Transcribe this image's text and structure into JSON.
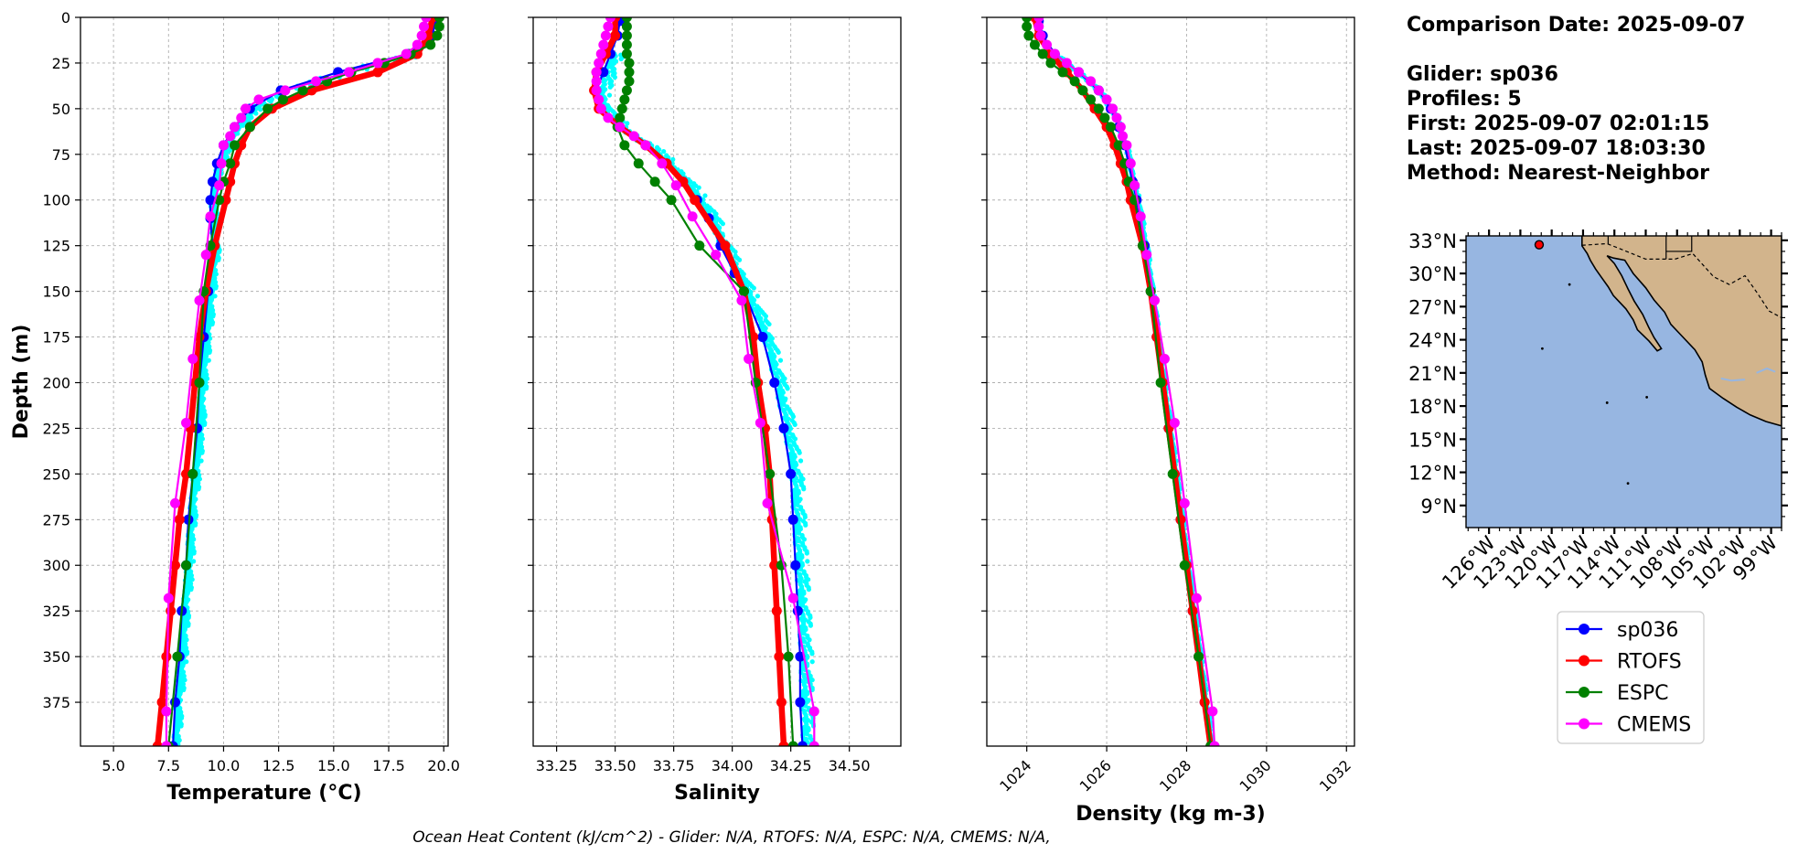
{
  "info": {
    "comparison_date": "Comparison Date: 2025-09-07",
    "glider": "Glider: sp036",
    "profiles": "Profiles: 5",
    "first": "First: 2025-09-07 02:01:15",
    "last": "Last: 2025-09-07 18:03:30",
    "method": "Method: Nearest-Neighbor"
  },
  "footer": "Ocean Heat Content (kJ/cm^2) - Glider: N/A,  RTOFS: N/A,  ESPC: N/A,  CMEMS: N/A,",
  "colors": {
    "glider": "#0000ff",
    "glider_scatter": "#00ffff",
    "rtofs": "#ff0000",
    "espc": "#008000",
    "cmems": "#ff00ff",
    "ocean": "#97b6e1",
    "land": "#d2b48c",
    "grid": "#b0b0b0"
  },
  "map": {
    "lat_labels": [
      "33°N",
      "30°N",
      "27°N",
      "24°N",
      "21°N",
      "18°N",
      "15°N",
      "12°N",
      "9°N"
    ],
    "lon_labels": [
      "126°W",
      "123°W",
      "120°W",
      "117°W",
      "114°W",
      "111°W",
      "108°W",
      "105°W",
      "102°W",
      "99°W"
    ],
    "glider_position": {
      "lon": -121.2,
      "lat": 32.6
    }
  },
  "legend": [
    "sp036",
    "RTOFS",
    "ESPC",
    "CMEMS"
  ],
  "chart_data": [
    {
      "type": "line",
      "xlabel": "Temperature (°C)",
      "ylabel": "Depth (m)",
      "xlim": [
        3.5,
        20.2
      ],
      "ylim": [
        399,
        0
      ],
      "xticks": [
        "5.0",
        "7.5",
        "10.0",
        "12.5",
        "15.0",
        "17.5",
        "20.0"
      ],
      "yticks": [
        "0",
        "25",
        "50",
        "75",
        "100",
        "125",
        "150",
        "175",
        "200",
        "225",
        "250",
        "275",
        "300",
        "325",
        "350",
        "375"
      ],
      "grid": true,
      "series": [
        {
          "name": "sp036",
          "depth": [
            2,
            10,
            20,
            30,
            40,
            50,
            60,
            70,
            80,
            90,
            100,
            110,
            125,
            150,
            175,
            200,
            225,
            250,
            275,
            300,
            325,
            350,
            375,
            399
          ],
          "values": [
            19.6,
            19.5,
            18.4,
            15.2,
            12.6,
            11.2,
            10.5,
            10.0,
            9.7,
            9.5,
            9.4,
            9.4,
            9.5,
            9.3,
            9.1,
            8.9,
            8.8,
            8.6,
            8.4,
            8.3,
            8.1,
            8.0,
            7.8,
            7.7
          ]
        },
        {
          "name": "RTOFS",
          "depth": [
            0,
            10,
            20,
            30,
            40,
            50,
            60,
            70,
            80,
            90,
            100,
            125,
            150,
            175,
            200,
            225,
            250,
            275,
            300,
            325,
            350,
            375,
            399
          ],
          "values": [
            19.5,
            19.3,
            18.8,
            17.0,
            14.0,
            12.2,
            11.2,
            10.8,
            10.5,
            10.3,
            10.1,
            9.6,
            9.2,
            8.9,
            8.7,
            8.5,
            8.3,
            8.0,
            7.8,
            7.6,
            7.4,
            7.2,
            7.0
          ]
        },
        {
          "name": "ESPC",
          "depth": [
            0,
            5,
            10,
            15,
            20,
            25,
            30,
            35,
            40,
            45,
            50,
            60,
            70,
            80,
            90,
            100,
            125,
            150,
            200,
            250,
            300,
            350,
            399
          ],
          "values": [
            19.8,
            19.8,
            19.7,
            19.4,
            18.5,
            17.3,
            15.8,
            14.7,
            13.6,
            12.7,
            12.0,
            11.2,
            10.5,
            10.3,
            10.0,
            9.8,
            9.4,
            9.1,
            8.9,
            8.6,
            8.3,
            7.9,
            7.5
          ]
        },
        {
          "name": "CMEMS",
          "depth": [
            0,
            5,
            10,
            15,
            20,
            25,
            30,
            35,
            40,
            45,
            50,
            55,
            60,
            65,
            70,
            80,
            92,
            109,
            130,
            155,
            187,
            222,
            266,
            318,
            380,
            399
          ],
          "values": [
            19.2,
            19.1,
            19.0,
            18.8,
            18.3,
            17.0,
            15.7,
            14.2,
            12.8,
            11.6,
            11.0,
            10.8,
            10.5,
            10.3,
            10.0,
            9.9,
            9.8,
            9.4,
            9.2,
            8.9,
            8.6,
            8.3,
            7.8,
            7.5,
            7.4,
            7.4
          ]
        }
      ]
    },
    {
      "type": "line",
      "xlabel": "Salinity",
      "ylabel": "",
      "xlim": [
        33.15,
        34.72
      ],
      "ylim": [
        399,
        0
      ],
      "xticks": [
        "33.25",
        "33.50",
        "33.75",
        "34.00",
        "34.25",
        "34.50"
      ],
      "yticks": [],
      "grid": true,
      "series": [
        {
          "name": "sp036",
          "depth": [
            2,
            10,
            20,
            30,
            40,
            50,
            60,
            70,
            80,
            90,
            100,
            110,
            125,
            140,
            150,
            175,
            200,
            225,
            250,
            275,
            300,
            325,
            350,
            375,
            399
          ],
          "values": [
            33.52,
            33.51,
            33.48,
            33.45,
            33.42,
            33.44,
            33.52,
            33.63,
            33.72,
            33.79,
            33.85,
            33.9,
            33.95,
            34.01,
            34.05,
            34.13,
            34.18,
            34.22,
            34.25,
            34.26,
            34.27,
            34.28,
            34.29,
            34.29,
            34.3
          ]
        },
        {
          "name": "RTOFS",
          "depth": [
            0,
            10,
            20,
            30,
            40,
            50,
            60,
            70,
            80,
            90,
            100,
            125,
            150,
            175,
            200,
            225,
            250,
            275,
            300,
            325,
            350,
            375,
            399
          ],
          "values": [
            33.5,
            33.5,
            33.46,
            33.42,
            33.41,
            33.43,
            33.52,
            33.63,
            33.72,
            33.79,
            33.84,
            33.97,
            34.05,
            34.09,
            34.11,
            34.14,
            34.16,
            34.17,
            34.18,
            34.19,
            34.2,
            34.21,
            34.22
          ]
        },
        {
          "name": "ESPC",
          "depth": [
            0,
            5,
            10,
            15,
            20,
            25,
            30,
            35,
            40,
            45,
            50,
            55,
            60,
            70,
            80,
            90,
            100,
            125,
            150,
            200,
            250,
            300,
            350,
            399
          ],
          "values": [
            33.55,
            33.55,
            33.55,
            33.55,
            33.55,
            33.56,
            33.56,
            33.56,
            33.55,
            33.54,
            33.53,
            33.52,
            33.51,
            33.54,
            33.6,
            33.67,
            33.74,
            33.86,
            34.05,
            34.1,
            34.16,
            34.21,
            34.24,
            34.26
          ]
        },
        {
          "name": "CMEMS",
          "depth": [
            0,
            5,
            10,
            15,
            20,
            25,
            30,
            35,
            40,
            45,
            50,
            55,
            60,
            65,
            70,
            80,
            92,
            109,
            130,
            155,
            187,
            222,
            266,
            318,
            380,
            399
          ],
          "values": [
            33.48,
            33.47,
            33.46,
            33.45,
            33.44,
            33.43,
            33.42,
            33.42,
            33.42,
            33.43,
            33.44,
            33.47,
            33.52,
            33.58,
            33.63,
            33.7,
            33.76,
            33.83,
            33.93,
            34.04,
            34.07,
            34.12,
            34.15,
            34.26,
            34.35,
            34.35
          ]
        }
      ]
    },
    {
      "type": "line",
      "xlabel": "Density (kg m-3)",
      "ylabel": "",
      "xlim": [
        1023.0,
        1032.2
      ],
      "ylim": [
        399,
        0
      ],
      "xticks": [
        "1024",
        "1026",
        "1028",
        "1030",
        "1032"
      ],
      "yticks": [],
      "grid": true,
      "series": [
        {
          "name": "sp036",
          "depth": [
            2,
            10,
            20,
            30,
            40,
            50,
            60,
            70,
            80,
            90,
            100,
            125,
            150,
            175,
            200,
            225,
            250,
            275,
            300,
            325,
            350,
            375,
            399
          ],
          "values": [
            1024.3,
            1024.4,
            1024.7,
            1025.3,
            1025.8,
            1026.1,
            1026.3,
            1026.45,
            1026.55,
            1026.65,
            1026.75,
            1026.95,
            1027.1,
            1027.25,
            1027.4,
            1027.55,
            1027.7,
            1027.85,
            1028.0,
            1028.15,
            1028.3,
            1028.45,
            1028.6
          ]
        },
        {
          "name": "RTOFS",
          "depth": [
            0,
            10,
            20,
            30,
            40,
            50,
            60,
            70,
            80,
            90,
            100,
            125,
            150,
            175,
            200,
            225,
            250,
            275,
            300,
            325,
            350,
            375,
            399
          ],
          "values": [
            1024.2,
            1024.3,
            1024.6,
            1025.0,
            1025.4,
            1025.7,
            1026.0,
            1026.2,
            1026.35,
            1026.5,
            1026.6,
            1026.9,
            1027.1,
            1027.25,
            1027.4,
            1027.55,
            1027.7,
            1027.85,
            1028.0,
            1028.15,
            1028.3,
            1028.45,
            1028.6
          ]
        },
        {
          "name": "ESPC",
          "depth": [
            0,
            5,
            10,
            15,
            20,
            25,
            30,
            35,
            40,
            45,
            50,
            55,
            60,
            70,
            80,
            90,
            100,
            125,
            150,
            200,
            250,
            300,
            350,
            399
          ],
          "values": [
            1024.0,
            1024.0,
            1024.05,
            1024.2,
            1024.4,
            1024.6,
            1024.9,
            1025.2,
            1025.4,
            1025.6,
            1025.8,
            1025.95,
            1026.1,
            1026.3,
            1026.45,
            1026.55,
            1026.7,
            1026.9,
            1027.1,
            1027.35,
            1027.65,
            1027.95,
            1028.3,
            1028.6
          ]
        },
        {
          "name": "CMEMS",
          "depth": [
            0,
            5,
            10,
            15,
            20,
            25,
            30,
            35,
            40,
            45,
            50,
            55,
            60,
            65,
            70,
            80,
            92,
            109,
            130,
            155,
            187,
            222,
            266,
            318,
            380,
            399
          ],
          "values": [
            1024.3,
            1024.3,
            1024.35,
            1024.5,
            1024.7,
            1025.0,
            1025.3,
            1025.6,
            1025.8,
            1026.0,
            1026.15,
            1026.25,
            1026.35,
            1026.4,
            1026.5,
            1026.6,
            1026.7,
            1026.85,
            1027.0,
            1027.2,
            1027.45,
            1027.7,
            1027.95,
            1028.25,
            1028.65,
            1028.7
          ]
        }
      ]
    }
  ]
}
